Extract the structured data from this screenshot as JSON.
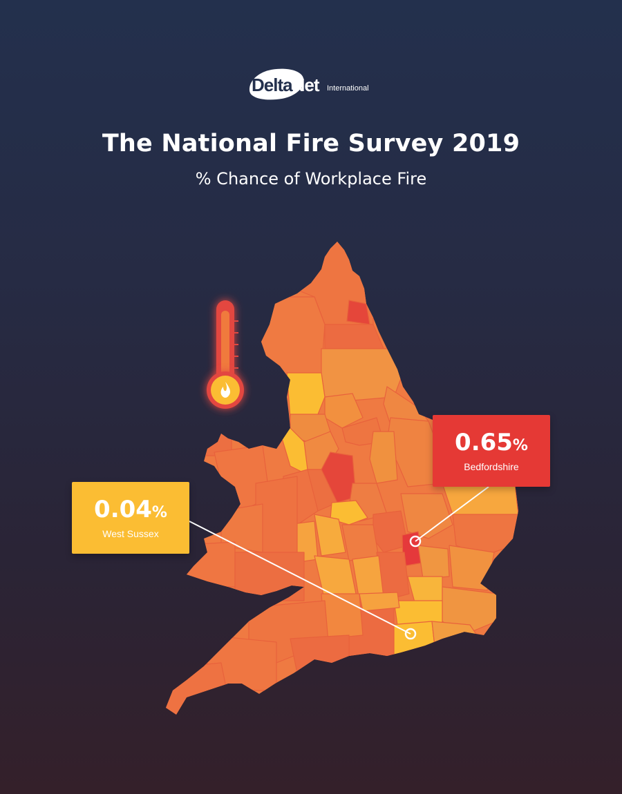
{
  "brand": {
    "name_part1": "Delta",
    "name_part2": "Net",
    "suffix": "International"
  },
  "header": {
    "title": "The National Fire Survey 2019",
    "subtitle": "% Chance of Workplace Fire"
  },
  "colors": {
    "background_top": "#23304d",
    "background_bottom": "#34202a",
    "high_risk": "#e53935",
    "low_risk": "#fbbd33",
    "mid_risk_orange": "#ef7a42",
    "mid_risk_light": "#f4953f"
  },
  "thermometer_icon": "thermometer-flame-icon",
  "callouts": [
    {
      "id": "highlight-high",
      "value": "0.65",
      "unit": "%",
      "county": "Bedfordshire",
      "color": "#e53935"
    },
    {
      "id": "highlight-low",
      "value": "0.04",
      "unit": "%",
      "county": "West Sussex",
      "color": "#fbbd33"
    }
  ]
}
